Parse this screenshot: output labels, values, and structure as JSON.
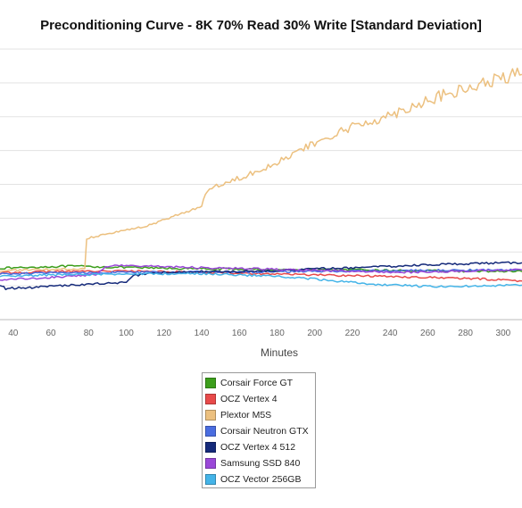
{
  "chart_data": {
    "type": "line",
    "title": "Preconditioning Curve - 8K 70% Read 30% Write [Standard Deviation]",
    "xlabel": "Minutes",
    "ylabel": "",
    "x_tick_labels": [
      "40",
      "60",
      "80",
      "100",
      "120",
      "140",
      "160",
      "180",
      "200",
      "220",
      "240",
      "260",
      "280",
      "300"
    ],
    "xlim": [
      33,
      310
    ],
    "ylim": [
      0,
      8
    ],
    "grid": "horizontal",
    "legend_position": "bottom",
    "series": [
      {
        "name": "Corsair Force GT",
        "color": "#3c9e1b",
        "x": [
          33,
          50,
          70,
          80,
          100,
          140,
          180,
          220,
          260,
          310
        ],
        "y": [
          1.52,
          1.55,
          1.58,
          1.57,
          1.54,
          1.5,
          1.48,
          1.47,
          1.44,
          1.42
        ]
      },
      {
        "name": "OCZ Vertex 4",
        "color": "#e84a4a",
        "x": [
          33,
          60,
          90,
          110,
          140,
          180,
          220,
          260,
          300,
          310
        ],
        "y": [
          1.38,
          1.42,
          1.44,
          1.43,
          1.4,
          1.35,
          1.3,
          1.25,
          1.18,
          1.14
        ]
      },
      {
        "name": "Plextor M5S",
        "color": "#ecc07f",
        "x": [
          33,
          60,
          78,
          79,
          90,
          110,
          125,
          140,
          143,
          160,
          180,
          200,
          220,
          240,
          260,
          280,
          300,
          310
        ],
        "y": [
          1.45,
          1.48,
          1.5,
          2.4,
          2.55,
          2.75,
          3.05,
          3.35,
          3.85,
          4.2,
          4.65,
          5.2,
          5.7,
          6.05,
          6.5,
          6.8,
          7.15,
          7.25
        ]
      },
      {
        "name": "Corsair Neutron GTX",
        "color": "#4a6de0",
        "x": [
          33,
          60,
          100,
          120,
          160,
          200,
          250,
          310
        ],
        "y": [
          1.35,
          1.38,
          1.4,
          1.4,
          1.41,
          1.43,
          1.45,
          1.47
        ]
      },
      {
        "name": "OCZ Vertex 4 512",
        "color": "#152a7a",
        "x": [
          33,
          36,
          50,
          65,
          80,
          100,
          104,
          110,
          120,
          140,
          160,
          180,
          200,
          230,
          260,
          290,
          310
        ],
        "y": [
          1.02,
          0.92,
          0.95,
          1.0,
          1.05,
          1.1,
          1.3,
          1.35,
          1.4,
          1.42,
          1.42,
          1.45,
          1.5,
          1.55,
          1.62,
          1.67,
          1.68
        ]
      },
      {
        "name": "Samsung SSD 840",
        "color": "#9a48d8",
        "x": [
          33,
          50,
          70,
          85,
          89,
          100,
          130,
          170,
          210,
          250,
          290,
          310
        ],
        "y": [
          1.18,
          1.22,
          1.28,
          1.35,
          1.58,
          1.6,
          1.55,
          1.5,
          1.44,
          1.4,
          1.45,
          1.47
        ]
      },
      {
        "name": "OCZ Vector 256GB",
        "color": "#44b4e8",
        "x": [
          33,
          60,
          100,
          140,
          180,
          200,
          230,
          260,
          290,
          310
        ],
        "y": [
          1.28,
          1.32,
          1.35,
          1.36,
          1.28,
          1.2,
          1.05,
          0.98,
          1.0,
          1.02
        ]
      }
    ]
  }
}
